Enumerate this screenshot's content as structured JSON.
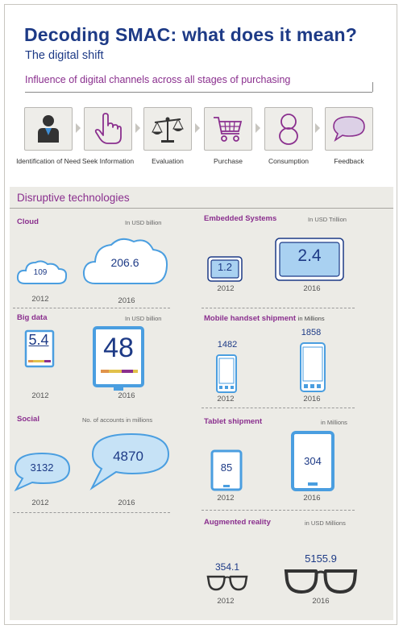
{
  "header": {
    "title": "Decoding SMAC: what does it mean?",
    "subtitle": "The digital shift",
    "influence": "Influence of digital channels across all stages of purchasing"
  },
  "stages": [
    {
      "label": "Identification of Need",
      "icon": "person-icon"
    },
    {
      "label": "Seek Information",
      "icon": "pointing-hand-icon"
    },
    {
      "label": "Evaluation",
      "icon": "scales-icon"
    },
    {
      "label": "Purchase",
      "icon": "shopping-cart-icon"
    },
    {
      "label": "Consumption",
      "icon": "figure-eight-icon"
    },
    {
      "label": "Feedback",
      "icon": "speech-bubble-icon"
    }
  ],
  "disruptive": {
    "heading": "Disruptive technologies",
    "cloud": {
      "title": "Cloud",
      "unit": "In USD billion",
      "v2012": "109",
      "v2016": "206.6",
      "y2012": "2012",
      "y2016": "2016"
    },
    "bigdata": {
      "title": "Big data",
      "unit": "In USD billion",
      "v2012": "5.4",
      "v2016": "48",
      "y2012": "2012",
      "y2016": "2016"
    },
    "social": {
      "title": "Social",
      "unit": "No. of accounts in millions",
      "v2012": "3132",
      "v2016": "4870",
      "y2012": "2012",
      "y2016": "2016"
    },
    "embedded": {
      "title": "Embedded Systems",
      "unit": "In USD Trillion",
      "v2012": "1.2",
      "v2016": "2.4",
      "y2012": "2012",
      "y2016": "2016"
    },
    "mobile": {
      "title": "Mobile handset shipment",
      "unit": "in Millions",
      "v2012": "1482",
      "v2016": "1858",
      "y2012": "2012",
      "y2016": "2016"
    },
    "tablet": {
      "title": "Tablet shipment",
      "unit": "in Millions",
      "v2012": "85",
      "v2016": "304",
      "y2012": "2012",
      "y2016": "2016"
    },
    "ar": {
      "title": "Augmented reality",
      "unit": "in USD Millions",
      "v2012": "354.1",
      "v2016": "5155.9",
      "y2012": "2012",
      "y2016": "2016"
    }
  },
  "colors": {
    "navy": "#1d3a86",
    "purple": "#8a2f8e",
    "blue": "#3f8fd6",
    "panel": "#ecebe6"
  }
}
